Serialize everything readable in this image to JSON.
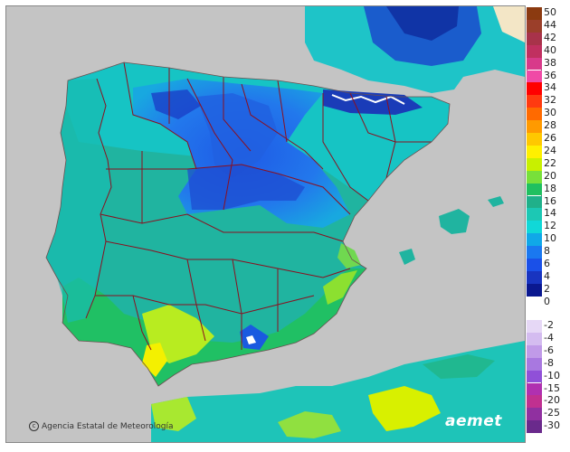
{
  "map": {
    "credit": "Agencia Estatal de Meteorología",
    "logo": "aemet"
  },
  "legend": {
    "positive": [
      {
        "label": "50",
        "color": "#8b3a10"
      },
      {
        "label": "44",
        "color": "#9b3f2a"
      },
      {
        "label": "42",
        "color": "#a8334a"
      },
      {
        "label": "40",
        "color": "#c03060"
      },
      {
        "label": "38",
        "color": "#d83a8a"
      },
      {
        "label": "36",
        "color": "#f04aa6"
      },
      {
        "label": "34",
        "color": "#ff0000"
      },
      {
        "label": "32",
        "color": "#ff3a10"
      },
      {
        "label": "30",
        "color": "#ff6a00"
      },
      {
        "label": "28",
        "color": "#ff9a00"
      },
      {
        "label": "26",
        "color": "#ffc800"
      },
      {
        "label": "24",
        "color": "#fff000"
      },
      {
        "label": "22",
        "color": "#c8f000"
      },
      {
        "label": "20",
        "color": "#78e03a"
      },
      {
        "label": "18",
        "color": "#20c060"
      },
      {
        "label": "16",
        "color": "#20b08a"
      },
      {
        "label": "14",
        "color": "#1cc8b4"
      },
      {
        "label": "12",
        "color": "#10d8d8"
      },
      {
        "label": "10",
        "color": "#10a8e8"
      },
      {
        "label": "8",
        "color": "#1a78f0"
      },
      {
        "label": "6",
        "color": "#1a50e8"
      },
      {
        "label": "4",
        "color": "#1834c0"
      },
      {
        "label": "2",
        "color": "#0a1890"
      },
      {
        "label": "0",
        "color": "#ffffff"
      }
    ],
    "negative": [
      {
        "label": "-2",
        "color": "#e6d8f6"
      },
      {
        "label": "-4",
        "color": "#d4bcf0"
      },
      {
        "label": "-6",
        "color": "#c09ae8"
      },
      {
        "label": "-8",
        "color": "#a878e0"
      },
      {
        "label": "-10",
        "color": "#9050d8"
      },
      {
        "label": "-15",
        "color": "#b030b0"
      },
      {
        "label": "-20",
        "color": "#c03090"
      },
      {
        "label": "-25",
        "color": "#9030a0"
      },
      {
        "label": "-30",
        "color": "#6a2a8c"
      }
    ]
  }
}
